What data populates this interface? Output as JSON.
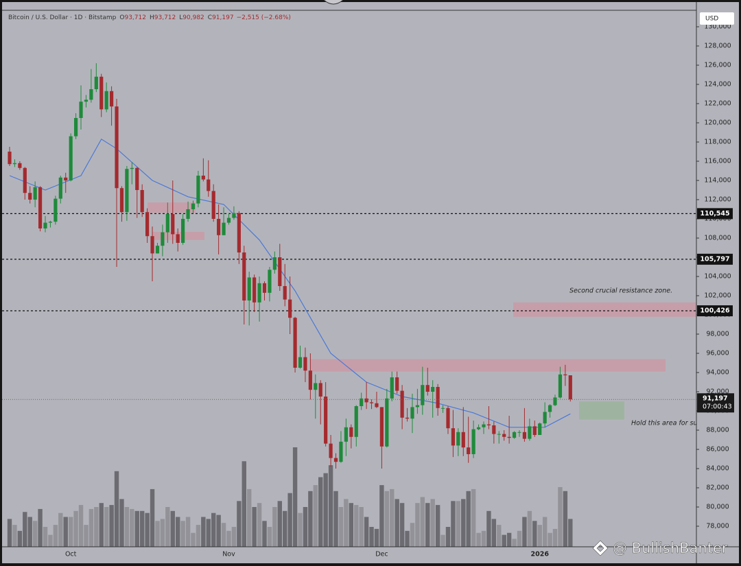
{
  "chart_data": {
    "type": "candlestick",
    "header": {
      "symbol": "Bitcoin / U.S. Dollar · 1D · Bitstamp",
      "ohlc": [
        {
          "key": "O",
          "value": "93,712"
        },
        {
          "key": "H",
          "value": "93,712"
        },
        {
          "key": "L",
          "value": "90,982"
        },
        {
          "key": "C",
          "value": "91,197"
        }
      ],
      "change": "−2,515 (−2.68%)"
    },
    "currency": "USD",
    "watermark": "@ BullishBanter",
    "annotations": [
      "Second crucial resistance zone.",
      "Hold this area for su"
    ],
    "categories": [
      null,
      null,
      null,
      null,
      null,
      null,
      null,
      null,
      null,
      null,
      null,
      null,
      "Oct",
      null,
      null,
      null,
      null,
      null,
      null,
      null,
      null,
      null,
      null,
      null,
      null,
      null,
      null,
      null,
      null,
      null,
      null,
      null,
      null,
      null,
      null,
      null,
      null,
      null,
      null,
      null,
      null,
      null,
      null,
      "Nov",
      null,
      null,
      null,
      null,
      null,
      null,
      null,
      null,
      null,
      null,
      null,
      null,
      null,
      null,
      null,
      null,
      null,
      null,
      null,
      null,
      null,
      null,
      null,
      null,
      null,
      null,
      null,
      null,
      null,
      "Dec",
      null,
      null,
      null,
      null,
      null,
      null,
      null,
      null,
      null,
      null,
      null,
      null,
      null,
      null,
      null,
      null,
      null,
      null,
      null,
      null,
      null,
      null,
      null,
      null,
      null,
      null,
      null,
      null,
      null,
      null,
      "2026",
      null,
      null,
      null,
      null,
      null,
      null
    ],
    "open": [
      117000,
      115700,
      115800,
      115300,
      112700,
      112000,
      113300,
      109000,
      109600,
      109700,
      112100,
      114300,
      114000,
      118600,
      120500,
      122200,
      122400,
      123500,
      124800,
      121400,
      123300,
      121700,
      113200,
      110700,
      115200,
      115300,
      113000,
      110700,
      108200,
      106400,
      107200,
      108600,
      110500,
      108400,
      107500,
      110000,
      111000,
      111600,
      114500,
      114100,
      112900,
      110000,
      108300,
      109600,
      110100,
      110600,
      106500,
      101500,
      103900,
      101300,
      103300,
      102300,
      104700,
      106000,
      103000,
      101600,
      99700,
      94500,
      95600,
      94200,
      92200,
      92900,
      91500,
      86600,
      85100,
      84700,
      86800,
      88300,
      87300,
      90500,
      91300,
      90900,
      90800,
      90400,
      86300,
      91300,
      93500,
      92100,
      89300,
      89200,
      90400,
      90600,
      92700,
      92000,
      92500,
      90300,
      90300,
      88200,
      86400,
      87800,
      86200,
      85500,
      88100,
      88300,
      88600,
      88500,
      87600,
      87600,
      87300,
      87200,
      87800,
      87800,
      87100,
      88400,
      87500,
      88700,
      89900,
      90600,
      91400,
      93800,
      93712
    ],
    "high": [
      117500,
      116200,
      116000,
      115400,
      113400,
      113900,
      113400,
      110300,
      109800,
      112400,
      114500,
      114800,
      118900,
      121000,
      123900,
      122900,
      125600,
      126200,
      125100,
      124200,
      123800,
      122500,
      113400,
      115500,
      115900,
      115400,
      113600,
      111100,
      109200,
      107500,
      109400,
      111700,
      114000,
      109000,
      110500,
      111800,
      111900,
      115000,
      116300,
      116100,
      113600,
      111500,
      111200,
      110600,
      111300,
      110800,
      107200,
      104500,
      104200,
      104000,
      103500,
      105000,
      106600,
      107400,
      105300,
      104000,
      99800,
      96800,
      96600,
      96000,
      93800,
      93200,
      93000,
      87500,
      85600,
      87900,
      89200,
      88600,
      90600,
      91900,
      93000,
      91200,
      92000,
      90400,
      92300,
      94100,
      94100,
      92700,
      90300,
      91800,
      92300,
      94600,
      94500,
      93200,
      92800,
      90600,
      90500,
      90100,
      88200,
      90400,
      89400,
      89000,
      88600,
      88900,
      90500,
      88900,
      87900,
      88000,
      89500,
      87900,
      88000,
      90300,
      89200,
      89000,
      88800,
      90900,
      90700,
      91700,
      94600,
      94800,
      93712
    ],
    "low": [
      115500,
      115400,
      115100,
      112000,
      111600,
      111200,
      108700,
      108600,
      109100,
      109400,
      111600,
      112700,
      113900,
      118300,
      119300,
      121600,
      122100,
      123200,
      120600,
      121100,
      119700,
      105000,
      109700,
      109800,
      113600,
      110100,
      110200,
      107500,
      103500,
      106400,
      106100,
      107500,
      107400,
      106600,
      107300,
      109700,
      110600,
      111200,
      113900,
      112300,
      109700,
      106300,
      108300,
      109400,
      109900,
      105300,
      99000,
      98900,
      100300,
      99300,
      101500,
      101400,
      104300,
      102500,
      100900,
      98000,
      94000,
      94400,
      93000,
      91200,
      89200,
      88600,
      86300,
      84200,
      84000,
      84600,
      85300,
      86100,
      86300,
      90100,
      90200,
      90200,
      90300,
      84000,
      86200,
      91000,
      91800,
      88100,
      88900,
      87700,
      89700,
      89600,
      91600,
      89300,
      89500,
      89800,
      87600,
      85200,
      85300,
      85300,
      84600,
      85100,
      88000,
      87600,
      88100,
      86600,
      86600,
      86900,
      86600,
      87100,
      87300,
      86800,
      86900,
      87300,
      87500,
      88300,
      89300,
      90500,
      91300,
      92600,
      90982
    ],
    "close": [
      115700,
      115800,
      115300,
      112700,
      112000,
      113300,
      109000,
      109600,
      109700,
      112100,
      114300,
      114000,
      118600,
      120500,
      122200,
      122400,
      123500,
      124800,
      121400,
      123300,
      121700,
      113200,
      110700,
      115200,
      115300,
      113000,
      110700,
      108200,
      106400,
      107200,
      108600,
      110500,
      108400,
      107500,
      110000,
      111000,
      111600,
      114500,
      114100,
      112900,
      110000,
      108300,
      109600,
      110100,
      110600,
      106500,
      101500,
      103900,
      101300,
      103300,
      102300,
      104700,
      106000,
      103000,
      101600,
      99700,
      94500,
      95600,
      94200,
      92200,
      92900,
      91500,
      86600,
      85100,
      84700,
      86800,
      88300,
      87300,
      90500,
      91300,
      90900,
      90800,
      90400,
      86300,
      91300,
      93500,
      92100,
      89300,
      89200,
      90400,
      90600,
      92700,
      92000,
      92500,
      90300,
      90300,
      88200,
      86400,
      87800,
      86200,
      85500,
      88100,
      88300,
      88600,
      88500,
      87600,
      87600,
      87300,
      87200,
      87800,
      87800,
      87100,
      88400,
      87500,
      88700,
      89900,
      90600,
      91400,
      93800,
      93712,
      91197
    ],
    "volume": [
      28,
      22,
      16,
      35,
      30,
      26,
      38,
      20,
      12,
      22,
      34,
      30,
      30,
      36,
      42,
      22,
      38,
      40,
      44,
      40,
      42,
      76,
      48,
      40,
      38,
      36,
      36,
      34,
      58,
      26,
      28,
      40,
      36,
      30,
      26,
      30,
      14,
      22,
      30,
      28,
      34,
      32,
      24,
      16,
      20,
      46,
      86,
      58,
      40,
      44,
      26,
      20,
      40,
      46,
      36,
      54,
      100,
      34,
      40,
      56,
      62,
      70,
      74,
      82,
      56,
      40,
      48,
      44,
      42,
      40,
      30,
      20,
      18,
      62,
      56,
      58,
      48,
      44,
      16,
      24,
      44,
      50,
      44,
      48,
      42,
      12,
      20,
      46,
      46,
      48,
      56,
      58,
      14,
      16,
      36,
      28,
      22,
      12,
      14,
      8,
      16,
      30,
      36,
      26,
      22,
      30,
      14,
      18,
      60,
      56,
      28
    ],
    "volume_ylim": [
      0,
      100
    ],
    "ma": {
      "color": "#4a78d8",
      "x": [
        0,
        7,
        14,
        18,
        21,
        28,
        35,
        42,
        49,
        56,
        63,
        70,
        77,
        84,
        91,
        98,
        105,
        110
      ],
      "values": [
        114500,
        113000,
        114500,
        118300,
        117300,
        114000,
        112300,
        111500,
        107800,
        102500,
        96000,
        93000,
        91500,
        90800,
        89800,
        88300,
        88300,
        89700
      ]
    },
    "up_color": "#1f8a3b",
    "down_color": "#a52a2e",
    "ylim": [
      75857,
      131714
    ],
    "yticks": [
      {
        "value": 78000,
        "label": "78,000"
      },
      {
        "value": 80000,
        "label": "80,000"
      },
      {
        "value": 82000,
        "label": "82,000"
      },
      {
        "value": 84000,
        "label": "84,000"
      },
      {
        "value": 86000,
        "label": "86,000"
      },
      {
        "value": 88000,
        "label": "88,000"
      },
      {
        "value": 90000,
        "label": "90,000"
      },
      {
        "value": 92000,
        "label": "92,000"
      },
      {
        "value": 94000,
        "label": "94,000"
      },
      {
        "value": 96000,
        "label": "96,000"
      },
      {
        "value": 98000,
        "label": "98,000"
      },
      {
        "value": 100000,
        "label": "100,000"
      },
      {
        "value": 102000,
        "label": "102,000"
      },
      {
        "value": 104000,
        "label": "104,000"
      },
      {
        "value": 106000,
        "label": "106,000"
      },
      {
        "value": 108000,
        "label": "108,000"
      },
      {
        "value": 110000,
        "label": "110,000"
      },
      {
        "value": 112000,
        "label": "112,000"
      },
      {
        "value": 114000,
        "label": "114,000"
      },
      {
        "value": 116000,
        "label": "116,000"
      },
      {
        "value": 118000,
        "label": "118,000"
      },
      {
        "value": 120000,
        "label": "120,000"
      },
      {
        "value": 122000,
        "label": "122,000"
      },
      {
        "value": 124000,
        "label": "124,000"
      },
      {
        "value": 126000,
        "label": "126,000"
      },
      {
        "value": 128000,
        "label": "128,000"
      },
      {
        "value": 130000,
        "label": "130,000"
      }
    ],
    "levels": [
      {
        "value": 110545,
        "label": "110,545"
      },
      {
        "value": 105797,
        "label": "105,797"
      },
      {
        "value": 100426,
        "label": "100,426"
      }
    ],
    "last_price": {
      "value": 91197,
      "label": "91,197",
      "countdown": "07:00:43"
    },
    "zones": [
      {
        "range": [
          110640,
          111710
        ],
        "color": "#c99aa6"
      },
      {
        "range": [
          107790,
          108640
        ],
        "color": "#c99aa6"
      },
      {
        "range": [
          94100,
          95400
        ],
        "color": "#c99aa6"
      },
      {
        "range": [
          99800,
          101300
        ],
        "color": "#c99aa6"
      },
      {
        "range": [
          89100,
          91000
        ],
        "color": "#9bb49b"
      }
    ]
  }
}
